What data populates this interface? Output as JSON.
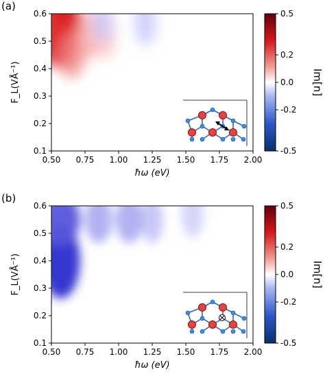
{
  "chart_data": [
    {
      "type": "heatmap",
      "panel_label": "(a)",
      "xlabel": "ħω (eV)",
      "ylabel": "F_L(VÅ⁻¹)",
      "xlim": [
        0.5,
        2.0
      ],
      "ylim": [
        0.1,
        0.6
      ],
      "x_ticks": [
        "0.50",
        "0.75",
        "1.00",
        "1.25",
        "1.50",
        "1.75",
        "2.00"
      ],
      "y_ticks": [
        "0.1",
        "0.2",
        "0.3",
        "0.4",
        "0.5",
        "0.6"
      ],
      "colorbar": {
        "label": "Im[n]",
        "range": [
          -0.5,
          0.5
        ],
        "ticks": [
          "0.5",
          "0.2",
          "0.0",
          "-0.2",
          "-0.5"
        ],
        "low_color": "#08306b",
        "mid_color": "#ffffff",
        "high_color": "#67000d"
      },
      "features": [
        {
          "x": 0.58,
          "y": 0.57,
          "value": 0.5
        },
        {
          "x": 0.55,
          "y": 0.5,
          "value": 0.4
        },
        {
          "x": 0.65,
          "y": 0.45,
          "value": 0.2
        },
        {
          "x": 0.78,
          "y": 0.52,
          "value": 0.12
        },
        {
          "x": 0.9,
          "y": 0.52,
          "value": 0.05
        },
        {
          "x": 1.2,
          "y": 0.57,
          "value": -0.05
        },
        {
          "x": 0.88,
          "y": 0.58,
          "value": -0.04
        }
      ],
      "inset": "lattice-polarization-in-plane"
    },
    {
      "type": "heatmap",
      "panel_label": "(b)",
      "xlabel": "ħω (eV)",
      "ylabel": "F_L(VÅ⁻¹)",
      "xlim": [
        0.5,
        2.0
      ],
      "ylim": [
        0.1,
        0.6
      ],
      "x_ticks": [
        "0.50",
        "0.75",
        "1.00",
        "1.25",
        "1.50",
        "1.75",
        "2.00"
      ],
      "y_ticks": [
        "0.1",
        "0.2",
        "0.3",
        "0.4",
        "0.5",
        "0.6"
      ],
      "colorbar": {
        "label": "Im[n]",
        "range": [
          -0.5,
          0.5
        ],
        "ticks": [
          "0.5",
          "0.2",
          "0.0",
          "-0.2",
          "-0.5"
        ],
        "low_color": "#08306b",
        "mid_color": "#ffffff",
        "high_color": "#67000d"
      },
      "features": [
        {
          "x": 0.57,
          "y": 0.4,
          "value": -0.4
        },
        {
          "x": 0.57,
          "y": 0.55,
          "value": -0.3
        },
        {
          "x": 0.85,
          "y": 0.55,
          "value": -0.15
        },
        {
          "x": 1.08,
          "y": 0.55,
          "value": -0.15
        },
        {
          "x": 1.25,
          "y": 0.55,
          "value": -0.08
        },
        {
          "x": 1.55,
          "y": 0.57,
          "value": -0.04
        }
      ],
      "inset": "lattice-polarization-out-of-plane"
    }
  ]
}
